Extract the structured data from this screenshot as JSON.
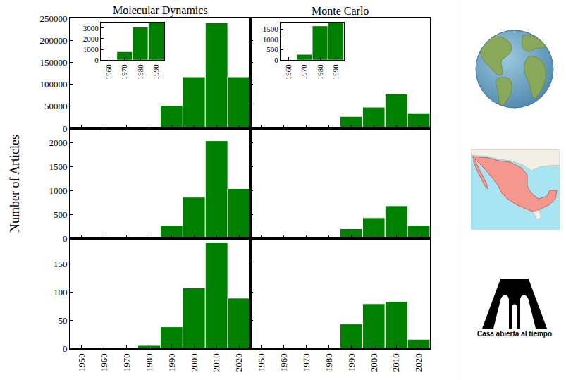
{
  "chart_data": [
    {
      "type": "bar",
      "title": "Molecular Dynamics",
      "bins": [
        1945,
        1955,
        1965,
        1975,
        1985,
        1995,
        2005,
        2015,
        2025
      ],
      "values": [
        0,
        50,
        800,
        3100,
        52000,
        117000,
        240000,
        117000
      ],
      "color": "#008000",
      "xlim": [
        1945,
        2025
      ],
      "xticks": [
        1950,
        1960,
        1970,
        1980,
        1990,
        2000,
        2010,
        2020
      ],
      "ylim": [
        0,
        250000
      ],
      "yticks": [
        0,
        50000,
        100000,
        150000,
        200000,
        250000
      ],
      "tick_labels": "y",
      "inset": {
        "xlim": [
          1955,
          1995
        ],
        "xticks": [
          1960,
          1970,
          1980,
          1990
        ],
        "ylim": [
          0,
          3500
        ],
        "yticks": [
          0,
          1000,
          2000,
          3000
        ]
      }
    },
    {
      "type": "bar",
      "title": "Monte Carlo",
      "bins": [
        1945,
        1955,
        1965,
        1975,
        1985,
        1995,
        2005,
        2015,
        2025
      ],
      "values": [
        0,
        20,
        280,
        1650,
        27000,
        48000,
        78000,
        35000
      ],
      "color": "#008000",
      "xlim": [
        1945,
        2025
      ],
      "xticks": [
        1950,
        1960,
        1970,
        1980,
        1990,
        2000,
        2010,
        2020
      ],
      "ylim": [
        0,
        250000
      ],
      "yticks": [
        0,
        50000,
        100000,
        150000,
        200000,
        250000
      ],
      "tick_labels": false,
      "inset": {
        "xlim": [
          1955,
          1995
        ],
        "xticks": [
          1960,
          1970,
          1980,
          1990
        ],
        "ylim": [
          0,
          1800
        ],
        "yticks": [
          0,
          500,
          1000,
          1500
        ]
      }
    },
    {
      "type": "bar",
      "bins": [
        1945,
        1955,
        1965,
        1975,
        1985,
        1995,
        2005,
        2015,
        2025
      ],
      "values": [
        0,
        0,
        0,
        8,
        270,
        860,
        2040,
        1040
      ],
      "color": "#008000",
      "xlim": [
        1945,
        2025
      ],
      "xticks": [
        1950,
        1960,
        1970,
        1980,
        1990,
        2000,
        2010,
        2020
      ],
      "ylim": [
        0,
        2300
      ],
      "yticks": [
        0,
        500,
        1000,
        1500,
        2000
      ],
      "tick_labels": "y"
    },
    {
      "type": "bar",
      "bins": [
        1945,
        1955,
        1965,
        1975,
        1985,
        1995,
        2005,
        2015,
        2025
      ],
      "values": [
        0,
        0,
        0,
        0,
        200,
        430,
        680,
        270
      ],
      "color": "#008000",
      "xlim": [
        1945,
        2025
      ],
      "xticks": [
        1950,
        1960,
        1970,
        1980,
        1990,
        2000,
        2010,
        2020
      ],
      "ylim": [
        0,
        2300
      ],
      "yticks": [
        0,
        500,
        1000,
        1500,
        2000
      ],
      "tick_labels": false
    },
    {
      "type": "bar",
      "bins": [
        1945,
        1955,
        1965,
        1975,
        1985,
        1995,
        2005,
        2015,
        2025
      ],
      "values": [
        0,
        0,
        0,
        5,
        38,
        107,
        188,
        89
      ],
      "color": "#008000",
      "xlim": [
        1945,
        2025
      ],
      "xticks": [
        1950,
        1960,
        1970,
        1980,
        1990,
        2000,
        2010,
        2020
      ],
      "ylim": [
        0,
        195
      ],
      "yticks": [
        0,
        50,
        100,
        150
      ],
      "tick_labels": true
    },
    {
      "type": "bar",
      "bins": [
        1945,
        1955,
        1965,
        1975,
        1985,
        1995,
        2005,
        2015,
        2025
      ],
      "values": [
        0,
        0,
        0,
        0,
        43,
        79,
        83,
        16
      ],
      "color": "#008000",
      "xlim": [
        1945,
        2025
      ],
      "xticks": [
        1950,
        1960,
        1970,
        1980,
        1990,
        2000,
        2010,
        2020
      ],
      "ylim": [
        0,
        195
      ],
      "yticks": [
        0,
        50,
        100,
        150
      ],
      "tick_labels": "x"
    }
  ],
  "y_label": "Number of Articles",
  "logo_text": "Casa abierta al tiempo"
}
